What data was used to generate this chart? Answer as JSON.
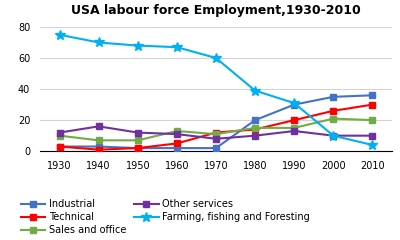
{
  "title": "USA labour force Employment,1930-2010",
  "years": [
    1930,
    1940,
    1950,
    1960,
    1970,
    1980,
    1990,
    2000,
    2010
  ],
  "series": {
    "Industrial": {
      "values": [
        3,
        3,
        2,
        2,
        2,
        20,
        30,
        35,
        36
      ],
      "color": "#4472C4",
      "marker": "s",
      "markersize": 4
    },
    "Technical": {
      "values": [
        3,
        1,
        2,
        5,
        12,
        14,
        20,
        26,
        30
      ],
      "color": "#FF0000",
      "marker": "s",
      "markersize": 4
    },
    "Sales and office": {
      "values": [
        10,
        7,
        7,
        13,
        11,
        15,
        15,
        21,
        20
      ],
      "color": "#70AD47",
      "marker": "s",
      "markersize": 4
    },
    "Other services": {
      "values": [
        12,
        16,
        12,
        11,
        8,
        10,
        13,
        10,
        10
      ],
      "color": "#7030A0",
      "marker": "s",
      "markersize": 4
    },
    "Farming, fishing and Foresting": {
      "values": [
        75,
        70,
        68,
        67,
        60,
        39,
        31,
        10,
        4
      ],
      "color": "#00B0F0",
      "marker": "*",
      "markersize": 7
    }
  },
  "ylim": [
    0,
    85
  ],
  "yticks": [
    0,
    20,
    40,
    60,
    80
  ],
  "legend_order": [
    "Industrial",
    "Technical",
    "Sales and office",
    "Other services",
    "Farming, fishing and Foresting"
  ],
  "bg_color": "#FFFFFF",
  "grid_color": "#D3D3D3",
  "title_fontsize": 9,
  "tick_fontsize": 7,
  "legend_fontsize": 7,
  "linewidth": 1.5
}
